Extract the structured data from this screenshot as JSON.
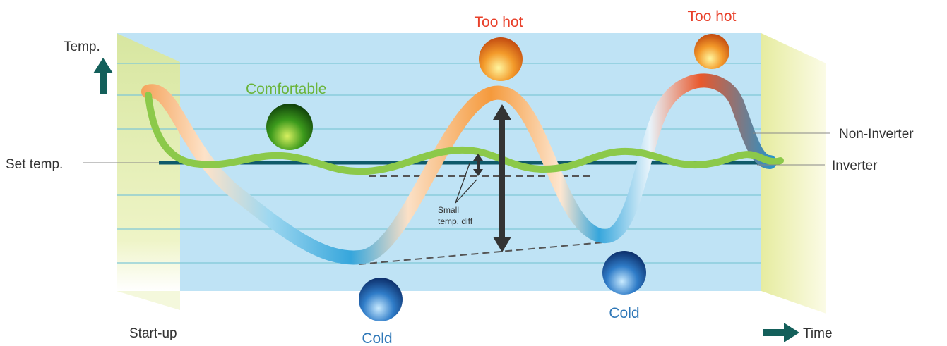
{
  "axes": {
    "y_label": "Temp.",
    "x_label": "Time",
    "set_temp": "Set temp.",
    "start": "Start-up"
  },
  "annotations": {
    "comfortable": "Comfortable",
    "too_hot": [
      "Too hot",
      "Too hot"
    ],
    "cold": [
      "Cold",
      "Cold"
    ],
    "small_diff": [
      "Small",
      "temp. diff"
    ]
  },
  "legend": {
    "non_inverter": "Non-Inverter",
    "inverter": "Inverter"
  }
}
